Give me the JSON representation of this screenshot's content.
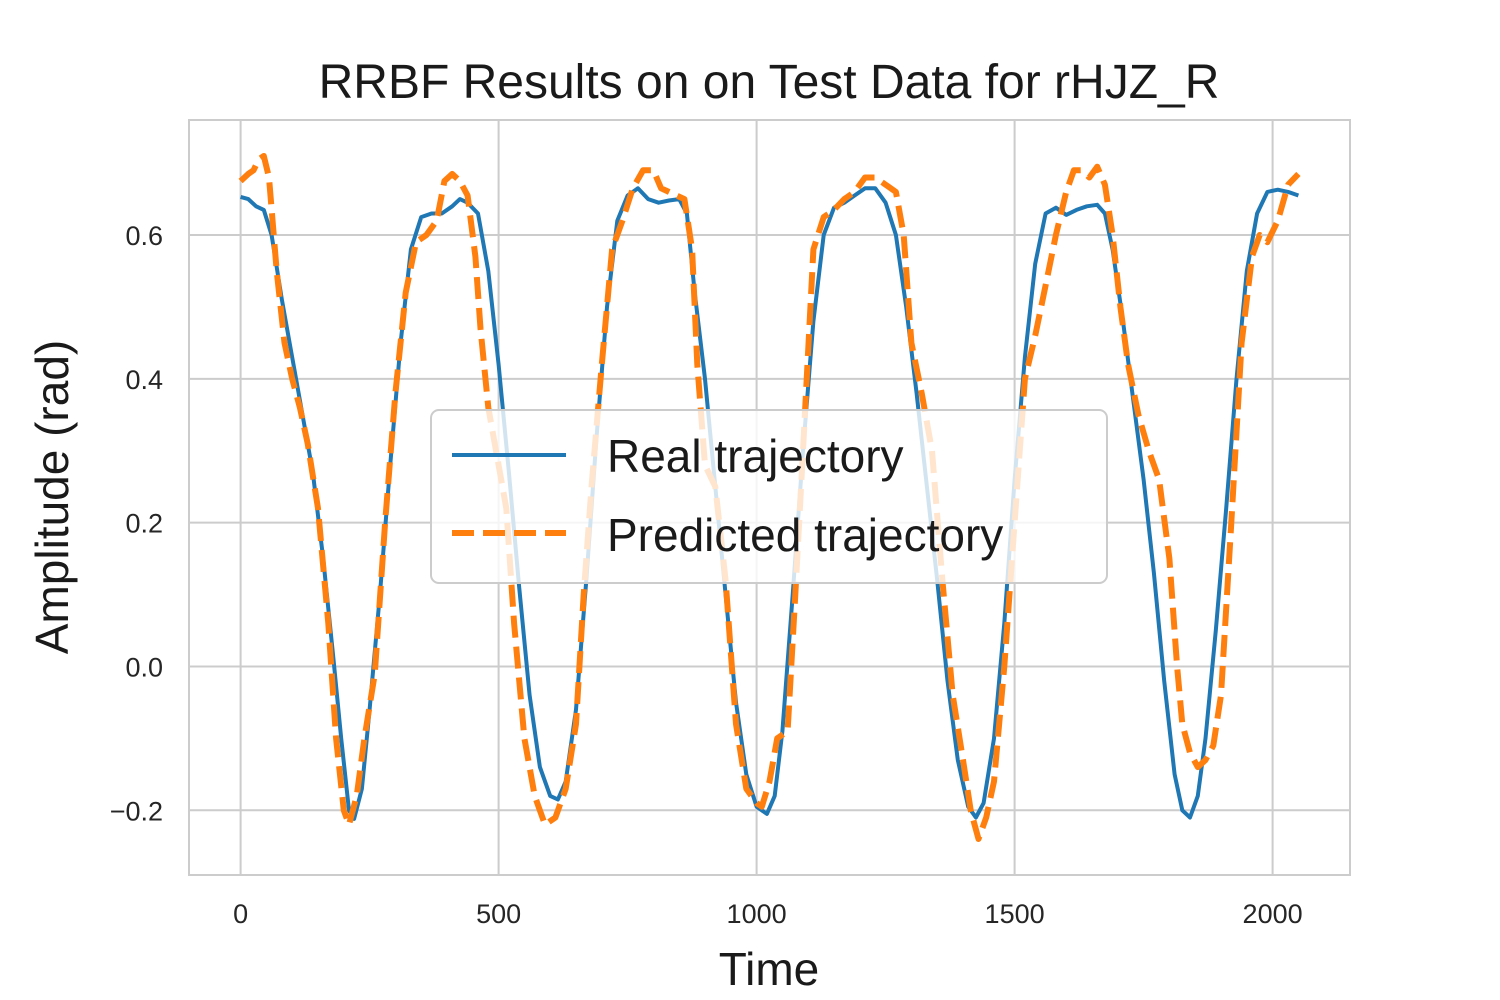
{
  "chart_data": {
    "type": "line",
    "title": "RRBF Results on on Test Data for rHJZ_R",
    "xlabel": "Time",
    "ylabel": "Amplitude (rad)",
    "xlim": [
      -100,
      2150
    ],
    "ylim": [
      -0.29,
      0.76
    ],
    "xticks": [
      0,
      500,
      1000,
      1500,
      2000
    ],
    "xtick_labels": [
      "0",
      "500",
      "1000",
      "1500",
      "2000"
    ],
    "yticks": [
      -0.2,
      0.0,
      0.2,
      0.4,
      0.6
    ],
    "ytick_labels": [
      "−0.2",
      "0.0",
      "0.2",
      "0.4",
      "0.6"
    ],
    "grid": true,
    "legend": {
      "position": "center"
    },
    "series": [
      {
        "name": "Real trajectory",
        "color": "#1f77b4",
        "style": "solid",
        "points": [
          [
            0,
            0.653
          ],
          [
            15,
            0.65
          ],
          [
            30,
            0.64
          ],
          [
            45,
            0.635
          ],
          [
            60,
            0.6
          ],
          [
            80,
            0.51
          ],
          [
            100,
            0.43
          ],
          [
            120,
            0.35
          ],
          [
            140,
            0.27
          ],
          [
            160,
            0.15
          ],
          [
            180,
            0.01
          ],
          [
            195,
            -0.1
          ],
          [
            210,
            -0.2
          ],
          [
            220,
            -0.212
          ],
          [
            235,
            -0.17
          ],
          [
            250,
            -0.06
          ],
          [
            270,
            0.1
          ],
          [
            290,
            0.28
          ],
          [
            310,
            0.45
          ],
          [
            330,
            0.58
          ],
          [
            350,
            0.625
          ],
          [
            370,
            0.63
          ],
          [
            390,
            0.63
          ],
          [
            410,
            0.64
          ],
          [
            425,
            0.65
          ],
          [
            440,
            0.645
          ],
          [
            460,
            0.63
          ],
          [
            480,
            0.55
          ],
          [
            500,
            0.42
          ],
          [
            520,
            0.27
          ],
          [
            540,
            0.11
          ],
          [
            560,
            -0.04
          ],
          [
            580,
            -0.14
          ],
          [
            600,
            -0.18
          ],
          [
            615,
            -0.185
          ],
          [
            630,
            -0.16
          ],
          [
            650,
            -0.06
          ],
          [
            670,
            0.12
          ],
          [
            690,
            0.32
          ],
          [
            710,
            0.5
          ],
          [
            730,
            0.62
          ],
          [
            750,
            0.655
          ],
          [
            770,
            0.665
          ],
          [
            790,
            0.65
          ],
          [
            810,
            0.645
          ],
          [
            830,
            0.648
          ],
          [
            850,
            0.65
          ],
          [
            865,
            0.63
          ],
          [
            880,
            0.52
          ],
          [
            900,
            0.4
          ],
          [
            920,
            0.25
          ],
          [
            940,
            0.1
          ],
          [
            960,
            -0.05
          ],
          [
            980,
            -0.15
          ],
          [
            1000,
            -0.195
          ],
          [
            1020,
            -0.205
          ],
          [
            1035,
            -0.18
          ],
          [
            1050,
            -0.09
          ],
          [
            1070,
            0.1
          ],
          [
            1090,
            0.3
          ],
          [
            1110,
            0.48
          ],
          [
            1130,
            0.6
          ],
          [
            1150,
            0.638
          ],
          [
            1170,
            0.645
          ],
          [
            1190,
            0.655
          ],
          [
            1210,
            0.665
          ],
          [
            1230,
            0.665
          ],
          [
            1250,
            0.645
          ],
          [
            1270,
            0.6
          ],
          [
            1290,
            0.5
          ],
          [
            1310,
            0.38
          ],
          [
            1330,
            0.25
          ],
          [
            1350,
            0.12
          ],
          [
            1370,
            -0.02
          ],
          [
            1390,
            -0.13
          ],
          [
            1410,
            -0.195
          ],
          [
            1425,
            -0.21
          ],
          [
            1440,
            -0.19
          ],
          [
            1460,
            -0.1
          ],
          [
            1480,
            0.06
          ],
          [
            1500,
            0.26
          ],
          [
            1520,
            0.43
          ],
          [
            1540,
            0.56
          ],
          [
            1560,
            0.63
          ],
          [
            1580,
            0.638
          ],
          [
            1600,
            0.628
          ],
          [
            1620,
            0.635
          ],
          [
            1640,
            0.64
          ],
          [
            1660,
            0.642
          ],
          [
            1675,
            0.63
          ],
          [
            1690,
            0.58
          ],
          [
            1710,
            0.48
          ],
          [
            1730,
            0.37
          ],
          [
            1750,
            0.26
          ],
          [
            1770,
            0.13
          ],
          [
            1790,
            -0.02
          ],
          [
            1810,
            -0.15
          ],
          [
            1825,
            -0.2
          ],
          [
            1840,
            -0.21
          ],
          [
            1855,
            -0.18
          ],
          [
            1870,
            -0.1
          ],
          [
            1890,
            0.05
          ],
          [
            1910,
            0.22
          ],
          [
            1930,
            0.4
          ],
          [
            1950,
            0.55
          ],
          [
            1970,
            0.63
          ],
          [
            1990,
            0.66
          ],
          [
            2010,
            0.663
          ],
          [
            2030,
            0.66
          ],
          [
            2050,
            0.655
          ]
        ]
      },
      {
        "name": "Predicted trajectory",
        "color": "#ff7f0e",
        "style": "dashed",
        "points": [
          [
            0,
            0.675
          ],
          [
            15,
            0.685
          ],
          [
            25,
            0.69
          ],
          [
            35,
            0.705
          ],
          [
            45,
            0.71
          ],
          [
            55,
            0.68
          ],
          [
            70,
            0.55
          ],
          [
            85,
            0.45
          ],
          [
            100,
            0.4
          ],
          [
            115,
            0.36
          ],
          [
            130,
            0.31
          ],
          [
            150,
            0.22
          ],
          [
            170,
            0.06
          ],
          [
            185,
            -0.1
          ],
          [
            200,
            -0.2
          ],
          [
            210,
            -0.22
          ],
          [
            225,
            -0.18
          ],
          [
            240,
            -0.1
          ],
          [
            260,
            -0.01
          ],
          [
            280,
            0.2
          ],
          [
            300,
            0.38
          ],
          [
            320,
            0.52
          ],
          [
            340,
            0.59
          ],
          [
            360,
            0.6
          ],
          [
            380,
            0.62
          ],
          [
            395,
            0.675
          ],
          [
            410,
            0.685
          ],
          [
            425,
            0.675
          ],
          [
            440,
            0.655
          ],
          [
            455,
            0.57
          ],
          [
            465,
            0.47
          ],
          [
            480,
            0.36
          ],
          [
            500,
            0.28
          ],
          [
            515,
            0.22
          ],
          [
            530,
            0.06
          ],
          [
            550,
            -0.1
          ],
          [
            570,
            -0.18
          ],
          [
            590,
            -0.22
          ],
          [
            610,
            -0.21
          ],
          [
            630,
            -0.17
          ],
          [
            650,
            -0.08
          ],
          [
            665,
            0.1
          ],
          [
            680,
            0.25
          ],
          [
            700,
            0.42
          ],
          [
            720,
            0.58
          ],
          [
            740,
            0.62
          ],
          [
            760,
            0.665
          ],
          [
            780,
            0.69
          ],
          [
            800,
            0.69
          ],
          [
            815,
            0.665
          ],
          [
            830,
            0.66
          ],
          [
            845,
            0.655
          ],
          [
            860,
            0.65
          ],
          [
            875,
            0.58
          ],
          [
            885,
            0.42
          ],
          [
            900,
            0.28
          ],
          [
            920,
            0.25
          ],
          [
            940,
            0.12
          ],
          [
            960,
            -0.08
          ],
          [
            980,
            -0.17
          ],
          [
            1000,
            -0.19
          ],
          [
            1010,
            -0.195
          ],
          [
            1025,
            -0.16
          ],
          [
            1040,
            -0.1
          ],
          [
            1060,
            -0.09
          ],
          [
            1075,
            0.1
          ],
          [
            1090,
            0.3
          ],
          [
            1110,
            0.58
          ],
          [
            1130,
            0.625
          ],
          [
            1150,
            0.635
          ],
          [
            1170,
            0.65
          ],
          [
            1190,
            0.66
          ],
          [
            1210,
            0.68
          ],
          [
            1230,
            0.68
          ],
          [
            1250,
            0.67
          ],
          [
            1270,
            0.66
          ],
          [
            1285,
            0.6
          ],
          [
            1300,
            0.45
          ],
          [
            1320,
            0.38
          ],
          [
            1340,
            0.3
          ],
          [
            1360,
            0.12
          ],
          [
            1380,
            -0.04
          ],
          [
            1400,
            -0.13
          ],
          [
            1415,
            -0.2
          ],
          [
            1430,
            -0.24
          ],
          [
            1445,
            -0.21
          ],
          [
            1460,
            -0.16
          ],
          [
            1480,
            0.0
          ],
          [
            1500,
            0.2
          ],
          [
            1520,
            0.4
          ],
          [
            1540,
            0.46
          ],
          [
            1560,
            0.53
          ],
          [
            1580,
            0.6
          ],
          [
            1600,
            0.66
          ],
          [
            1615,
            0.69
          ],
          [
            1630,
            0.69
          ],
          [
            1645,
            0.68
          ],
          [
            1660,
            0.695
          ],
          [
            1675,
            0.67
          ],
          [
            1690,
            0.6
          ],
          [
            1705,
            0.5
          ],
          [
            1720,
            0.42
          ],
          [
            1740,
            0.35
          ],
          [
            1760,
            0.3
          ],
          [
            1780,
            0.26
          ],
          [
            1800,
            0.15
          ],
          [
            1815,
            0.0
          ],
          [
            1825,
            -0.08
          ],
          [
            1840,
            -0.12
          ],
          [
            1855,
            -0.14
          ],
          [
            1870,
            -0.13
          ],
          [
            1885,
            -0.11
          ],
          [
            1900,
            -0.04
          ],
          [
            1920,
            0.2
          ],
          [
            1940,
            0.45
          ],
          [
            1960,
            0.57
          ],
          [
            1975,
            0.6
          ],
          [
            1990,
            0.59
          ],
          [
            2010,
            0.62
          ],
          [
            2030,
            0.67
          ],
          [
            2050,
            0.685
          ]
        ]
      }
    ]
  }
}
